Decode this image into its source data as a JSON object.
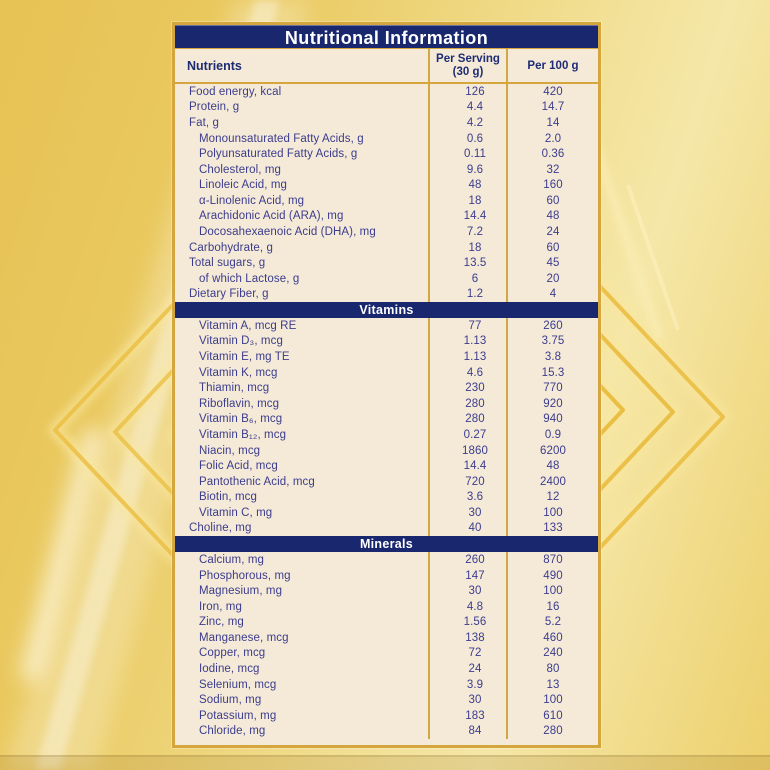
{
  "colors": {
    "header_bar": "#19276f",
    "header_text": "#ffffff",
    "head_text": "#1e2c74",
    "row_text": "#3c3c8e",
    "panel_bg": "#f4ead7",
    "panel_border": "#d5a63e",
    "divider": "#d2a845",
    "background_gold": "#e9c75f"
  },
  "table": {
    "title": "Nutritional Information",
    "columns": {
      "nutrients": "Nutrients",
      "per_serving_line1": "Per Serving",
      "per_serving_line2": "(30 g)",
      "per_100g": "Per 100 g"
    },
    "sections": [
      {
        "name": null,
        "rows": [
          {
            "nutrient": "Food energy, kcal",
            "indent": 0,
            "per_serving": "126",
            "per_100g": "420"
          },
          {
            "nutrient": "Protein, g",
            "indent": 0,
            "per_serving": "4.4",
            "per_100g": "14.7"
          },
          {
            "nutrient": "Fat, g",
            "indent": 0,
            "per_serving": "4.2",
            "per_100g": "14"
          },
          {
            "nutrient": "Monounsaturated Fatty Acids, g",
            "indent": 1,
            "per_serving": "0.6",
            "per_100g": "2.0"
          },
          {
            "nutrient": "Polyunsaturated Fatty Acids, g",
            "indent": 1,
            "per_serving": "0.11",
            "per_100g": "0.36"
          },
          {
            "nutrient": "Cholesterol, mg",
            "indent": 1,
            "per_serving": "9.6",
            "per_100g": "32"
          },
          {
            "nutrient": "Linoleic Acid, mg",
            "indent": 1,
            "per_serving": "48",
            "per_100g": "160"
          },
          {
            "nutrient": "α-Linolenic Acid, mg",
            "indent": 1,
            "per_serving": "18",
            "per_100g": "60"
          },
          {
            "nutrient": "Arachidonic Acid (ARA), mg",
            "indent": 1,
            "per_serving": "14.4",
            "per_100g": "48"
          },
          {
            "nutrient": "Docosahexaenoic Acid (DHA), mg",
            "indent": 1,
            "per_serving": "7.2",
            "per_100g": "24"
          },
          {
            "nutrient": "Carbohydrate, g",
            "indent": 0,
            "per_serving": "18",
            "per_100g": "60"
          },
          {
            "nutrient": "Total sugars, g",
            "indent": 0,
            "per_serving": "13.5",
            "per_100g": "45"
          },
          {
            "nutrient": "of which Lactose, g",
            "indent": 1,
            "per_serving": "6",
            "per_100g": "20"
          },
          {
            "nutrient": "Dietary Fiber, g",
            "indent": 0,
            "per_serving": "1.2",
            "per_100g": "4"
          }
        ]
      },
      {
        "name": "Vitamins",
        "rows": [
          {
            "nutrient": "Vitamin A, mcg RE",
            "indent": 1,
            "per_serving": "77",
            "per_100g": "260"
          },
          {
            "nutrient": "Vitamin D₃, mcg",
            "indent": 1,
            "per_serving": "1.13",
            "per_100g": "3.75"
          },
          {
            "nutrient": "Vitamin E, mg TE",
            "indent": 1,
            "per_serving": "1.13",
            "per_100g": "3.8"
          },
          {
            "nutrient": "Vitamin K, mcg",
            "indent": 1,
            "per_serving": "4.6",
            "per_100g": "15.3"
          },
          {
            "nutrient": "Thiamin, mcg",
            "indent": 1,
            "per_serving": "230",
            "per_100g": "770"
          },
          {
            "nutrient": "Riboflavin, mcg",
            "indent": 1,
            "per_serving": "280",
            "per_100g": "920"
          },
          {
            "nutrient": "Vitamin B₆, mcg",
            "indent": 1,
            "per_serving": "280",
            "per_100g": "940"
          },
          {
            "nutrient": "Vitamin B₁₂, mcg",
            "indent": 1,
            "per_serving": "0.27",
            "per_100g": "0.9"
          },
          {
            "nutrient": "Niacin, mcg",
            "indent": 1,
            "per_serving": "1860",
            "per_100g": "6200"
          },
          {
            "nutrient": "Folic Acid, mcg",
            "indent": 1,
            "per_serving": "14.4",
            "per_100g": "48"
          },
          {
            "nutrient": "Pantothenic Acid, mcg",
            "indent": 1,
            "per_serving": "720",
            "per_100g": "2400"
          },
          {
            "nutrient": "Biotin, mcg",
            "indent": 1,
            "per_serving": "3.6",
            "per_100g": "12"
          },
          {
            "nutrient": "Vitamin C, mg",
            "indent": 1,
            "per_serving": "30",
            "per_100g": "100"
          },
          {
            "nutrient": "Choline, mg",
            "indent": 0,
            "per_serving": "40",
            "per_100g": "133"
          }
        ]
      },
      {
        "name": "Minerals",
        "rows": [
          {
            "nutrient": "Calcium, mg",
            "indent": 1,
            "per_serving": "260",
            "per_100g": "870"
          },
          {
            "nutrient": "Phosphorous, mg",
            "indent": 1,
            "per_serving": "147",
            "per_100g": "490"
          },
          {
            "nutrient": "Magnesium, mg",
            "indent": 1,
            "per_serving": "30",
            "per_100g": "100"
          },
          {
            "nutrient": "Iron, mg",
            "indent": 1,
            "per_serving": "4.8",
            "per_100g": "16"
          },
          {
            "nutrient": "Zinc, mg",
            "indent": 1,
            "per_serving": "1.56",
            "per_100g": "5.2"
          },
          {
            "nutrient": "Manganese, mcg",
            "indent": 1,
            "per_serving": "138",
            "per_100g": "460"
          },
          {
            "nutrient": "Copper, mcg",
            "indent": 1,
            "per_serving": "72",
            "per_100g": "240"
          },
          {
            "nutrient": "Iodine, mcg",
            "indent": 1,
            "per_serving": "24",
            "per_100g": "80"
          },
          {
            "nutrient": "Selenium, mcg",
            "indent": 1,
            "per_serving": "3.9",
            "per_100g": "13"
          },
          {
            "nutrient": "Sodium, mg",
            "indent": 1,
            "per_serving": "30",
            "per_100g": "100"
          },
          {
            "nutrient": "Potassium, mg",
            "indent": 1,
            "per_serving": "183",
            "per_100g": "610"
          },
          {
            "nutrient": "Chloride, mg",
            "indent": 1,
            "per_serving": "84",
            "per_100g": "280"
          }
        ]
      }
    ]
  }
}
